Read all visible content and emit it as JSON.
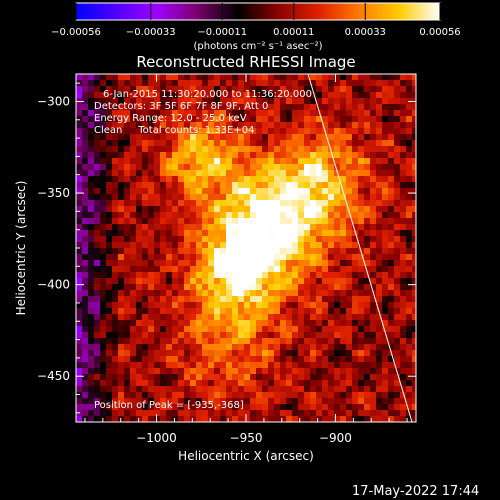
{
  "chart_data": {
    "type": "heatmap",
    "title": "Reconstructed RHESSI Image",
    "xlabel": "Heliocentric X (arcsec)",
    "ylabel": "Heliocentric Y (arcsec)",
    "xlim": [
      -1045,
      -855
    ],
    "ylim": [
      -475,
      -285
    ],
    "xticks": [
      -1000,
      -950,
      -900
    ],
    "xtick_labels": [
      "−1000",
      "−950",
      "−900"
    ],
    "yticks": [
      -300,
      -350,
      -400,
      -450
    ],
    "ytick_labels": [
      "−300",
      "−350",
      "−400",
      "−450"
    ],
    "colorbar": {
      "ticks": [
        -0.00056,
        -0.00033,
        -0.00011,
        0.00011,
        0.00033,
        0.00056
      ],
      "tick_labels": [
        "−0.00056",
        "−0.00033",
        "−0.00011",
        "0.00011",
        "0.00033",
        "0.00056"
      ],
      "label": "(photons cm⁻² s⁻¹ asec⁻²)",
      "colormap": [
        "#0000ff",
        "#5000ff",
        "#a000ff",
        "#7a006a",
        "#000000",
        "#8a0000",
        "#e02000",
        "#ff7a00",
        "#ffcc00",
        "#ffffff"
      ]
    },
    "annotations": [
      "6-Jan-2015 11:30:20.000 to 11:36:20.000",
      "Detectors: 3F 5F 6F 7F 8F 9F, Att 0",
      "Energy Range: 12.0 - 25.0 keV",
      "Clean     Total counts: 1.33E+04"
    ],
    "peak_label": "Position of Peak = [-935,-368]",
    "peak": [
      -935,
      -368
    ]
  },
  "timestamp": "17-May-2022 17:44",
  "colors": {
    "background": "#000000",
    "limb_line": "#ffffff"
  }
}
